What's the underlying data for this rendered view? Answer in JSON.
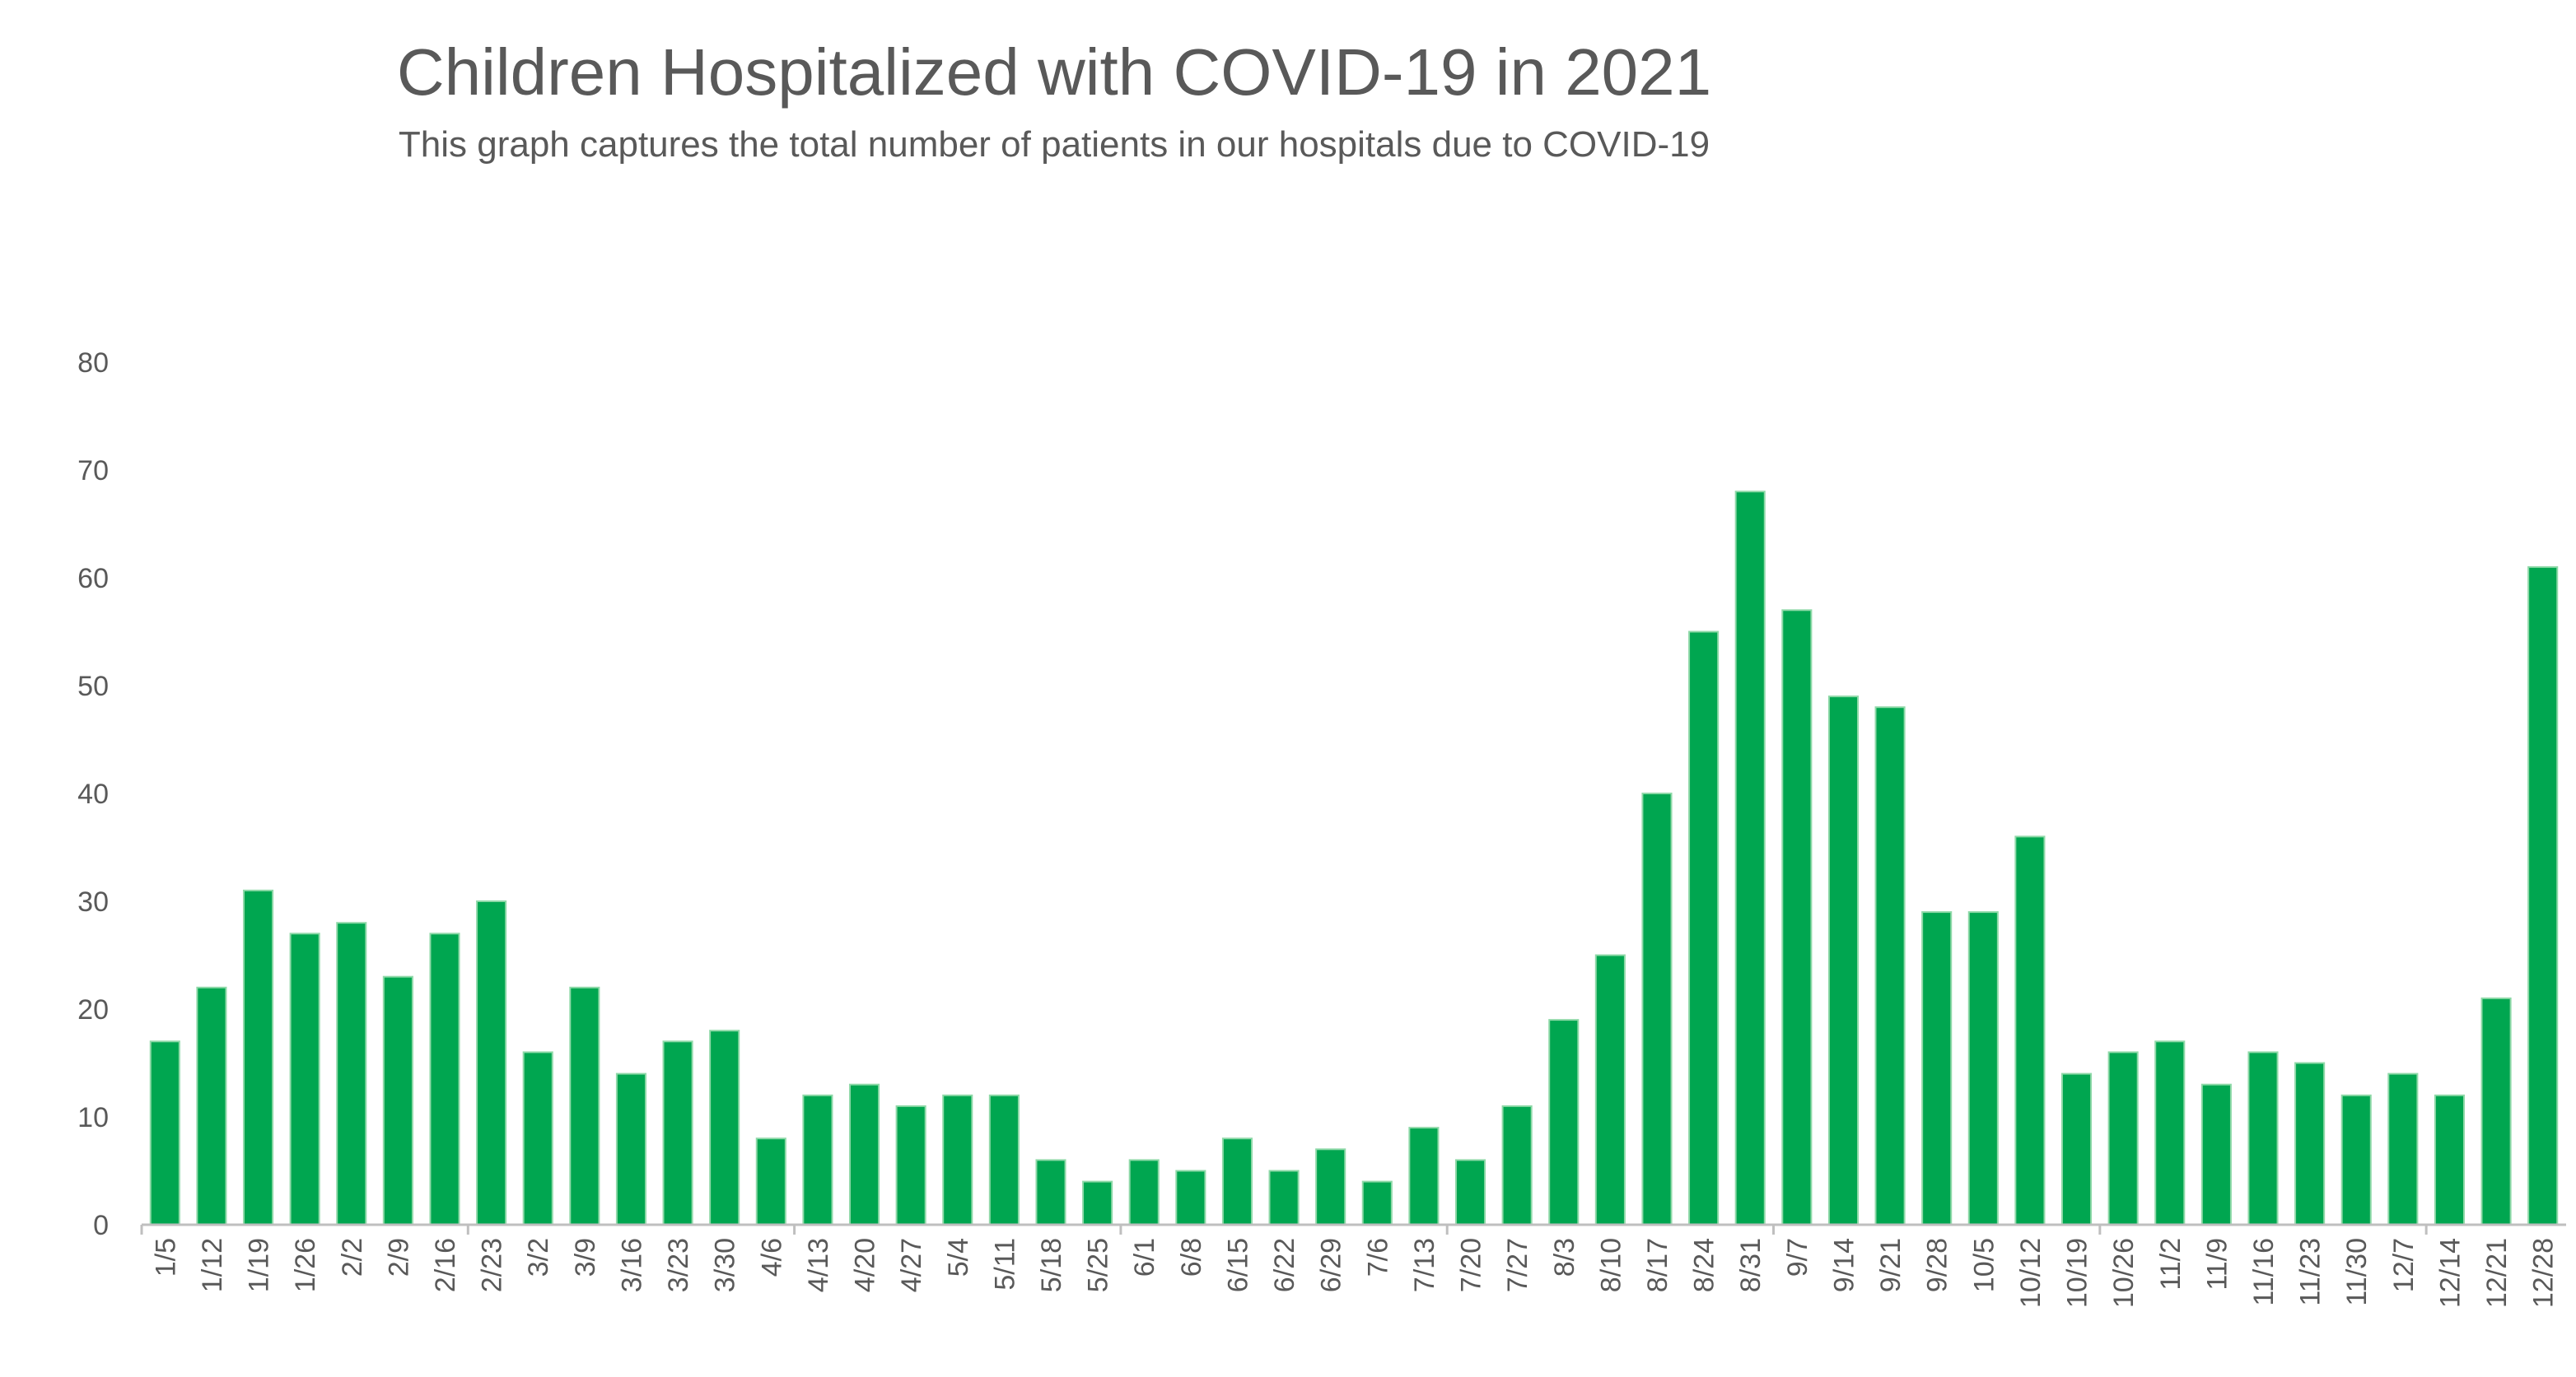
{
  "chart_data": {
    "type": "bar",
    "title": "Children Hospitalized with COVID-19 in 2021",
    "subtitle": "This graph captures the total number of patients in our hospitals due to COVID-19",
    "xlabel": "",
    "ylabel": "",
    "ylim": [
      0,
      80
    ],
    "yticks": [
      0,
      10,
      20,
      30,
      40,
      50,
      60,
      70,
      80
    ],
    "grid": false,
    "legend": "none",
    "bar_color": "#00A650",
    "axis_color": "#BFBFBF",
    "text_color": "#595959",
    "categories": [
      "1/5",
      "1/12",
      "1/19",
      "1/26",
      "2/2",
      "2/9",
      "2/16",
      "2/23",
      "3/2",
      "3/9",
      "3/16",
      "3/23",
      "3/30",
      "4/6",
      "4/13",
      "4/20",
      "4/27",
      "5/4",
      "5/11",
      "5/18",
      "5/25",
      "6/1",
      "6/8",
      "6/15",
      "6/22",
      "6/29",
      "7/6",
      "7/13",
      "7/20",
      "7/27",
      "8/3",
      "8/10",
      "8/17",
      "8/24",
      "8/31",
      "9/7",
      "9/14",
      "9/21",
      "9/28",
      "10/5",
      "10/12",
      "10/19",
      "10/26",
      "11/2",
      "11/9",
      "11/16",
      "11/23",
      "11/30",
      "12/7",
      "12/14",
      "12/21",
      "12/28"
    ],
    "values": [
      17,
      22,
      31,
      27,
      28,
      23,
      27,
      30,
      16,
      22,
      14,
      17,
      18,
      8,
      12,
      13,
      11,
      12,
      12,
      6,
      4,
      6,
      5,
      8,
      5,
      7,
      4,
      9,
      6,
      11,
      19,
      25,
      40,
      55,
      68,
      57,
      49,
      48,
      29,
      29,
      36,
      14,
      16,
      17,
      13,
      16,
      15,
      12,
      14,
      12,
      21,
      61
    ]
  }
}
